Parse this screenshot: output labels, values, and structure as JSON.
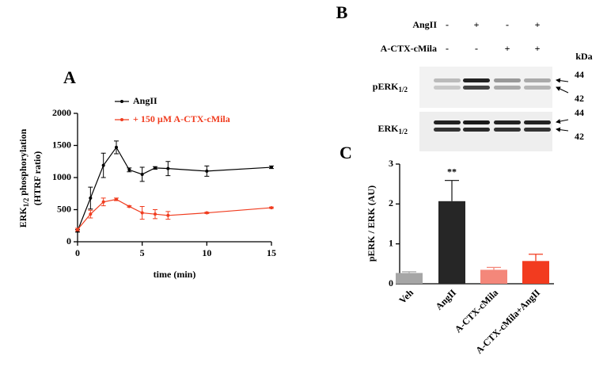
{
  "chart_data": [
    {
      "type": "line",
      "panel": "A",
      "ylabel": [
        "ERK",
        "1/2",
        " phosphorylation",
        "(HTRF ratio)"
      ],
      "xlabel": "time (min)",
      "x": [
        0,
        1,
        2,
        3,
        4,
        5,
        6,
        7,
        10,
        15
      ],
      "series": [
        {
          "name": "AngII",
          "color": "#000000",
          "values": [
            170,
            680,
            1190,
            1470,
            1120,
            1050,
            1150,
            1140,
            1100,
            1160
          ],
          "errors": [
            20,
            170,
            190,
            100,
            30,
            110,
            20,
            110,
            80,
            20
          ]
        },
        {
          "name": "+ 150 µM  A-CTX-cMila",
          "color": "#f03c1f",
          "values": [
            190,
            430,
            620,
            660,
            550,
            450,
            430,
            410,
            450,
            530
          ],
          "errors": [
            20,
            60,
            60,
            20,
            10,
            100,
            70,
            60,
            10,
            10
          ]
        }
      ],
      "xlim": [
        0,
        15
      ],
      "xticks": [
        0,
        5,
        10,
        15
      ],
      "ylim": [
        0,
        2000
      ],
      "yticks": [
        0,
        500,
        1000,
        1500,
        2000
      ]
    },
    {
      "type": "bar",
      "panel": "C",
      "ylabel": "pERK / ERK (AU)",
      "categories": [
        "Veh",
        "AngII",
        "A-CTX-cMila",
        "A-CTX-cMila+AngII"
      ],
      "values": [
        0.27,
        2.07,
        0.35,
        0.57
      ],
      "errors": [
        0.03,
        0.52,
        0.06,
        0.17
      ],
      "colors": [
        "#a6a6a6",
        "#262626",
        "#f4877a",
        "#f23b1f"
      ],
      "annotation": "**",
      "ylim": [
        0,
        3
      ],
      "yticks": [
        0,
        1,
        2,
        3
      ]
    }
  ],
  "blot": {
    "panel": "B",
    "rows": [
      {
        "label": "AngII",
        "signs": [
          "-",
          "+",
          "-",
          "+"
        ]
      },
      {
        "label": "A-CTX-cMila",
        "signs": [
          "-",
          "-",
          "+",
          "+"
        ]
      }
    ],
    "unit": "kDa",
    "bands": [
      {
        "label": [
          "pERK",
          "1/2"
        ],
        "markers": [
          "44",
          "42"
        ]
      },
      {
        "label": [
          "ERK",
          "1/2"
        ],
        "markers": [
          "44",
          "42"
        ]
      }
    ]
  }
}
